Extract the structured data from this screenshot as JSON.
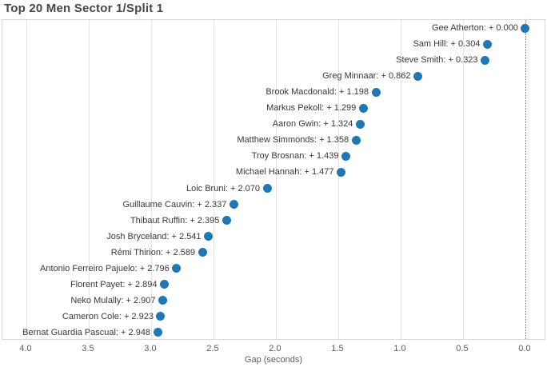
{
  "chart_data": {
    "type": "scatter",
    "title": "Top 20 Men Sector 1/Split 1",
    "xlabel": "Gap (seconds)",
    "orientation": "horizontal dot plot, one rider per row, x-axis reversed",
    "legend": "none",
    "marker_color": "#1f77b4",
    "zero_line_color": "#7a7a7a",
    "grid": true,
    "xaxis": {
      "reversed": true,
      "range": [
        4.192,
        -0.167
      ],
      "tick_values": [
        4.0,
        3.5,
        3.0,
        2.5,
        2.0,
        1.5,
        1.0,
        0.5,
        0.0
      ],
      "ticks": [
        "4.0",
        "3.5",
        "3.0",
        "2.5",
        "2.0",
        "1.5",
        "1.0",
        "0.5",
        "0.0"
      ]
    },
    "points": [
      {
        "name": "Gee Atherton",
        "gap": 0.0,
        "label": "Gee Atherton: + 0.000"
      },
      {
        "name": "Sam Hill",
        "gap": 0.304,
        "label": "Sam Hill: + 0.304"
      },
      {
        "name": "Steve Smith",
        "gap": 0.323,
        "label": "Steve Smith: + 0.323"
      },
      {
        "name": "Greg Minnaar",
        "gap": 0.862,
        "label": "Greg Minnaar: + 0.862"
      },
      {
        "name": "Brook Macdonald",
        "gap": 1.198,
        "label": "Brook Macdonald: + 1.198"
      },
      {
        "name": "Markus Pekoll",
        "gap": 1.299,
        "label": "Markus Pekoll: + 1.299"
      },
      {
        "name": "Aaron Gwin",
        "gap": 1.324,
        "label": "Aaron Gwin: + 1.324"
      },
      {
        "name": "Matthew Simmonds",
        "gap": 1.358,
        "label": "Matthew Simmonds: + 1.358"
      },
      {
        "name": "Troy Brosnan",
        "gap": 1.439,
        "label": "Troy Brosnan: + 1.439"
      },
      {
        "name": "Michael Hannah",
        "gap": 1.477,
        "label": "Michael Hannah: + 1.477"
      },
      {
        "name": "Loic Bruni",
        "gap": 2.07,
        "label": "Loic Bruni: + 2.070"
      },
      {
        "name": "Guillaume Cauvin",
        "gap": 2.337,
        "label": "Guillaume Cauvin: + 2.337"
      },
      {
        "name": "Thibaut Ruffin",
        "gap": 2.395,
        "label": "Thibaut Ruffin: + 2.395"
      },
      {
        "name": "Josh Bryceland",
        "gap": 2.541,
        "label": "Josh Bryceland: + 2.541"
      },
      {
        "name": "Rémi Thirion",
        "gap": 2.589,
        "label": "Rémi Thirion: + 2.589"
      },
      {
        "name": "Antonio Ferreiro Pajuelo",
        "gap": 2.796,
        "label": "Antonio Ferreiro Pajuelo: + 2.796"
      },
      {
        "name": "Florent Payet",
        "gap": 2.894,
        "label": "Florent Payet: + 2.894"
      },
      {
        "name": "Neko Mulally",
        "gap": 2.907,
        "label": "Neko Mulally: + 2.907"
      },
      {
        "name": "Cameron Cole",
        "gap": 2.923,
        "label": "Cameron Cole: + 2.923"
      },
      {
        "name": "Bernat Guardia Pascual",
        "gap": 2.948,
        "label": "Bernat Guardia Pascual: + 2.948"
      }
    ]
  }
}
